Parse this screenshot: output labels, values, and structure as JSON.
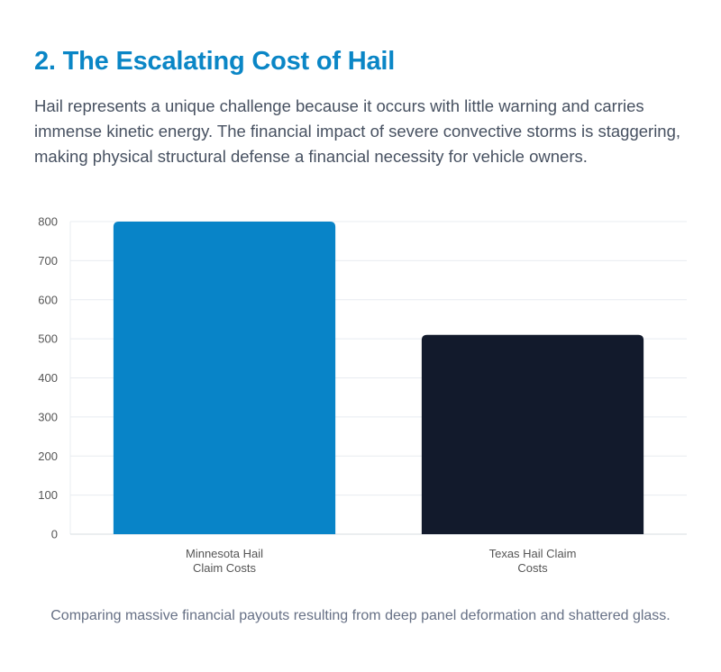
{
  "section": {
    "title": "2. The Escalating Cost of Hail",
    "intro": "Hail represents a unique challenge because it occurs with little warning and carries immense kinetic energy. The financial impact of severe convective storms is staggering, making physical structural defense a financial necessity for vehicle owners.",
    "caption": "Comparing massive financial payouts resulting from deep panel deformation and shattered glass."
  },
  "colors": {
    "title": "#0a86c6",
    "grid": "#e8ecf0",
    "axis_text": "#555555"
  },
  "chart_data": {
    "type": "bar",
    "title": "",
    "xlabel": "",
    "ylabel": "",
    "ylim": [
      0,
      800
    ],
    "yticks": [
      0,
      100,
      200,
      300,
      400,
      500,
      600,
      700,
      800
    ],
    "grid": true,
    "legend": "none",
    "categories": [
      [
        "Minnesota Hail",
        "Claim Costs"
      ],
      [
        "Texas Hail Claim",
        "Costs"
      ]
    ],
    "values": [
      800,
      510
    ],
    "bar_colors": [
      "#0884c8",
      "#121a2c"
    ]
  }
}
